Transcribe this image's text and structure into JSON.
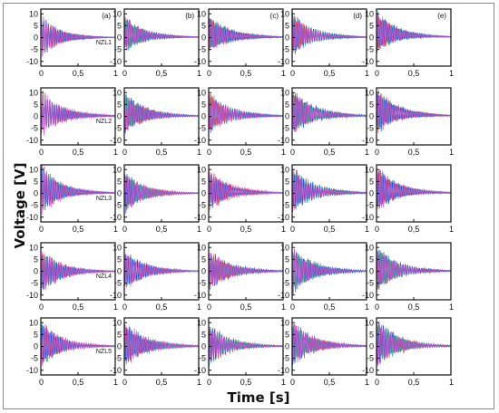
{
  "chart_data": {
    "type": "line",
    "title": "",
    "xlabel": "Time [s]",
    "ylabel": "Voltage [V]",
    "xlim": [
      0,
      1
    ],
    "ylim": [
      -12,
      12
    ],
    "x_ticks": [
      "0",
      "0,5",
      "1"
    ],
    "y_ticks": [
      "10",
      "5",
      "0",
      "-5",
      "-10"
    ],
    "column_labels": [
      "(a)",
      "(b)",
      "(c)",
      "(d)",
      "(e)"
    ],
    "row_labels": [
      "NZL1",
      "NZL2",
      "NZL3",
      "NZL4",
      "NZL5"
    ],
    "series_colors": [
      "#e8272a",
      "#14b08e",
      "#1f4fe0",
      "#d84fc8"
    ],
    "signal": "damped oscillation decaying from about ±10 V at t=0 to ~0 V near t=1 s",
    "panels": [
      [
        {
          "amp": 9,
          "offset": 0.5
        },
        {
          "amp": 8,
          "offset": 1.5
        },
        {
          "amp": 8,
          "offset": 1.5
        },
        {
          "amp": 9,
          "offset": 1.5
        },
        {
          "amp": 9,
          "offset": 2.5
        }
      ],
      [
        {
          "amp": 10,
          "offset": 1.5
        },
        {
          "amp": 9,
          "offset": 1.5
        },
        {
          "amp": 9,
          "offset": 1.5
        },
        {
          "amp": 10,
          "offset": 2
        },
        {
          "amp": 10,
          "offset": 2.5
        }
      ],
      [
        {
          "amp": 11,
          "offset": 1.5
        },
        {
          "amp": 9,
          "offset": 0.5
        },
        {
          "amp": 9,
          "offset": 1.5
        },
        {
          "amp": 10,
          "offset": 1.5
        },
        {
          "amp": 10,
          "offset": 2
        }
      ],
      [
        {
          "amp": 10,
          "offset": 0
        },
        {
          "amp": 9,
          "offset": 0.5
        },
        {
          "amp": 9,
          "offset": 0.5
        },
        {
          "amp": 10,
          "offset": 0.5
        },
        {
          "amp": 10,
          "offset": 1
        }
      ],
      [
        {
          "amp": 10,
          "offset": 1
        },
        {
          "amp": 10,
          "offset": 1
        },
        {
          "amp": 9,
          "offset": 1
        },
        {
          "amp": 10,
          "offset": 1.5
        },
        {
          "amp": 11,
          "offset": 1.5
        }
      ]
    ]
  }
}
